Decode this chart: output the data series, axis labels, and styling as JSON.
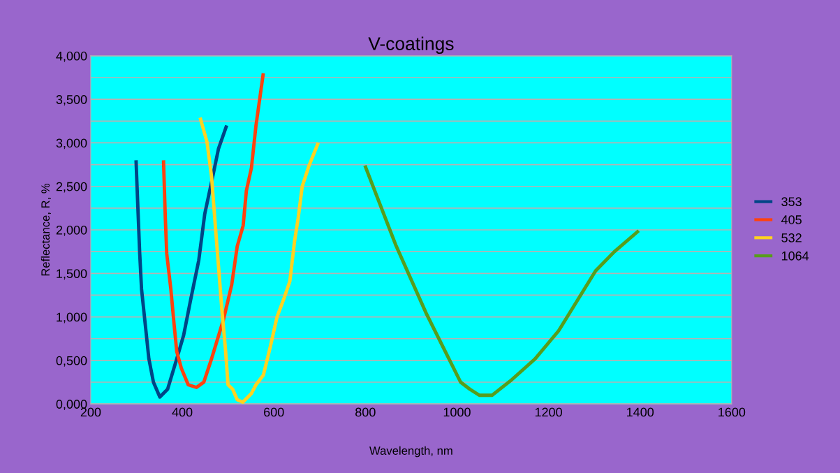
{
  "chart_data": {
    "type": "line",
    "title": "V-coatings",
    "xlabel": "Wavelength, nm",
    "ylabel": "Reflectance, R, %",
    "xlim": [
      200,
      1600
    ],
    "xticks": [
      200,
      400,
      600,
      800,
      1000,
      1200,
      1400,
      1600
    ],
    "ylim": [
      0,
      4
    ],
    "yticks": [
      {
        "value": 0,
        "label": "0,000"
      },
      {
        "value": 0.25,
        "label": null
      },
      {
        "value": 0.5,
        "label": "0,500"
      },
      {
        "value": 0.75,
        "label": null
      },
      {
        "value": 1,
        "label": "1,000"
      },
      {
        "value": 1.25,
        "label": null
      },
      {
        "value": 1.5,
        "label": "1,500"
      },
      {
        "value": 1.75,
        "label": null
      },
      {
        "value": 2,
        "label": "2,000"
      },
      {
        "value": 2.25,
        "label": null
      },
      {
        "value": 2.5,
        "label": "2,500"
      },
      {
        "value": 2.75,
        "label": null
      },
      {
        "value": 3,
        "label": "3,000"
      },
      {
        "value": 3.25,
        "label": null
      },
      {
        "value": 3.5,
        "label": "3,500"
      },
      {
        "value": 3.75,
        "label": null
      },
      {
        "value": 4,
        "label": "4,000"
      }
    ],
    "grid": "y",
    "legend": "right",
    "marker": "none",
    "line_style": "solid",
    "series": [
      {
        "name": "353",
        "color": "#004586",
        "x": [
          299,
          302,
          307,
          311,
          319,
          327,
          337,
          351,
          368,
          388,
          403,
          418,
          436,
          449,
          464,
          479,
          497
        ],
        "values": [
          2.8,
          2.39,
          1.73,
          1.32,
          0.92,
          0.52,
          0.25,
          0.08,
          0.17,
          0.52,
          0.79,
          1.19,
          1.65,
          2.18,
          2.55,
          2.93,
          3.2
        ]
      },
      {
        "name": "405",
        "color": "#ff420e",
        "x": [
          359,
          363,
          366,
          375,
          382,
          388,
          398,
          413,
          431,
          447,
          464,
          490,
          508,
          520,
          533,
          540,
          551,
          561,
          577
        ],
        "values": [
          2.8,
          2.13,
          1.73,
          1.32,
          0.92,
          0.6,
          0.41,
          0.22,
          0.19,
          0.25,
          0.52,
          0.97,
          1.37,
          1.81,
          2.05,
          2.45,
          2.71,
          3.2,
          3.8
        ]
      },
      {
        "name": "532",
        "color": "#ffd320",
        "x": [
          439,
          454,
          464,
          471,
          479,
          487,
          494,
          500,
          510,
          520,
          532,
          551,
          561,
          577,
          592,
          607,
          622,
          635,
          645,
          653,
          662,
          677,
          697
        ],
        "values": [
          3.29,
          3.01,
          2.61,
          2.13,
          1.59,
          1.05,
          0.65,
          0.22,
          0.17,
          0.05,
          0.02,
          0.12,
          0.22,
          0.33,
          0.65,
          1.0,
          1.21,
          1.41,
          1.86,
          2.13,
          2.5,
          2.74,
          3.0
        ]
      },
      {
        "name": "1064",
        "color": "#579d1c",
        "x": [
          799,
          866,
          932,
          1008,
          1028,
          1049,
          1077,
          1120,
          1171,
          1222,
          1263,
          1303,
          1344,
          1397
        ],
        "values": [
          2.74,
          1.83,
          1.05,
          0.25,
          0.17,
          0.1,
          0.1,
          0.28,
          0.52,
          0.84,
          1.19,
          1.53,
          1.75,
          1.99
        ]
      }
    ]
  }
}
